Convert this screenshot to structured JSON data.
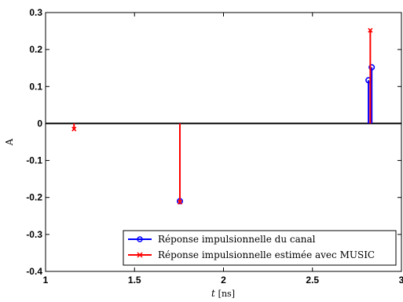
{
  "chart_data": {
    "type": "stem",
    "xlabel_var": "t",
    "xlabel_unit": "[ns]",
    "ylabel": "A",
    "xlim": [
      1,
      3
    ],
    "ylim": [
      -0.4,
      0.3
    ],
    "xticks": [
      "1",
      "1.5",
      "2",
      "2.5",
      "3"
    ],
    "yticks": [
      "0.3",
      "0.2",
      "0.1",
      "0",
      "-0.1",
      "-0.2",
      "-0.3",
      "-0.4"
    ],
    "xtick_values": [
      1,
      1.5,
      2,
      2.5,
      3
    ],
    "ytick_values": [
      0.3,
      0.2,
      0.1,
      0,
      -0.1,
      -0.2,
      -0.3,
      -0.4
    ],
    "legend_position": "bottom-right",
    "series": [
      {
        "name": "Réponse impulsionnelle du canal",
        "color": "#0000ff",
        "marker": "circle",
        "x": [
          1.755,
          2.815,
          2.833
        ],
        "y": [
          -0.21,
          0.117,
          0.152
        ]
      },
      {
        "name": "Réponse impulsionnelle estimée avec MUSIC",
        "color": "#ff0000",
        "marker": "x",
        "x": [
          1.16,
          1.755,
          2.825
        ],
        "y": [
          -0.015,
          -0.213,
          0.252
        ]
      }
    ]
  }
}
